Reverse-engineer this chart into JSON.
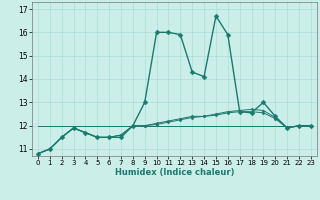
{
  "title": "",
  "xlabel": "Humidex (Indice chaleur)",
  "ylabel": "",
  "background_color": "#cceee8",
  "grid_color": "#aaddda",
  "line_color": "#1a7a6e",
  "xlim": [
    -0.5,
    23.5
  ],
  "ylim": [
    10.7,
    17.3
  ],
  "yticks": [
    11,
    12,
    13,
    14,
    15,
    16,
    17
  ],
  "xticks": [
    0,
    1,
    2,
    3,
    4,
    5,
    6,
    7,
    8,
    9,
    10,
    11,
    12,
    13,
    14,
    15,
    16,
    17,
    18,
    19,
    20,
    21,
    22,
    23
  ],
  "series": [
    {
      "x": [
        0,
        1,
        2,
        3,
        4,
        5,
        6,
        7,
        8,
        9,
        10,
        11,
        12,
        13,
        14,
        15,
        16,
        17,
        18,
        19,
        20,
        21,
        22,
        23
      ],
      "y": [
        10.8,
        11.0,
        11.5,
        11.9,
        11.7,
        11.5,
        11.5,
        11.5,
        12.0,
        13.0,
        16.0,
        16.0,
        15.9,
        14.3,
        14.1,
        16.7,
        15.9,
        12.6,
        12.55,
        13.0,
        12.4,
        11.9,
        12.0,
        12.0
      ],
      "linewidth": 1.0,
      "markersize": 2.5
    },
    {
      "x": [
        0,
        1,
        2,
        3,
        4,
        5,
        6,
        7,
        8,
        9,
        10,
        11,
        12,
        13,
        14,
        15,
        16,
        17,
        18,
        19,
        20,
        21,
        22,
        23
      ],
      "y": [
        10.8,
        11.0,
        11.5,
        11.9,
        11.7,
        11.5,
        11.5,
        11.6,
        12.0,
        12.0,
        12.05,
        12.15,
        12.25,
        12.35,
        12.4,
        12.5,
        12.6,
        12.65,
        12.7,
        12.65,
        12.35,
        11.9,
        12.0,
        12.0
      ],
      "linewidth": 0.7,
      "markersize": 1.5
    },
    {
      "x": [
        0,
        1,
        2,
        3,
        4,
        5,
        6,
        7,
        8,
        9,
        10,
        11,
        12,
        13,
        14,
        15,
        16,
        17,
        18,
        19,
        20,
        21,
        22,
        23
      ],
      "y": [
        10.8,
        11.0,
        11.5,
        11.9,
        11.7,
        11.5,
        11.5,
        11.6,
        12.0,
        12.0,
        12.1,
        12.2,
        12.3,
        12.4,
        12.4,
        12.45,
        12.55,
        12.6,
        12.6,
        12.55,
        12.3,
        11.9,
        12.0,
        12.0
      ],
      "linewidth": 0.7,
      "markersize": 1.5
    },
    {
      "x": [
        0,
        23
      ],
      "y": [
        12.0,
        12.0
      ],
      "linewidth": 0.7,
      "markersize": 0
    }
  ]
}
